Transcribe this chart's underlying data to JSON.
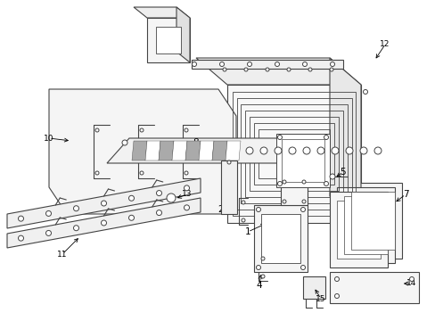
{
  "background": "#ffffff",
  "line_color": "#444444",
  "label_color": "#000000",
  "lw": 0.8,
  "lw_thin": 0.5
}
